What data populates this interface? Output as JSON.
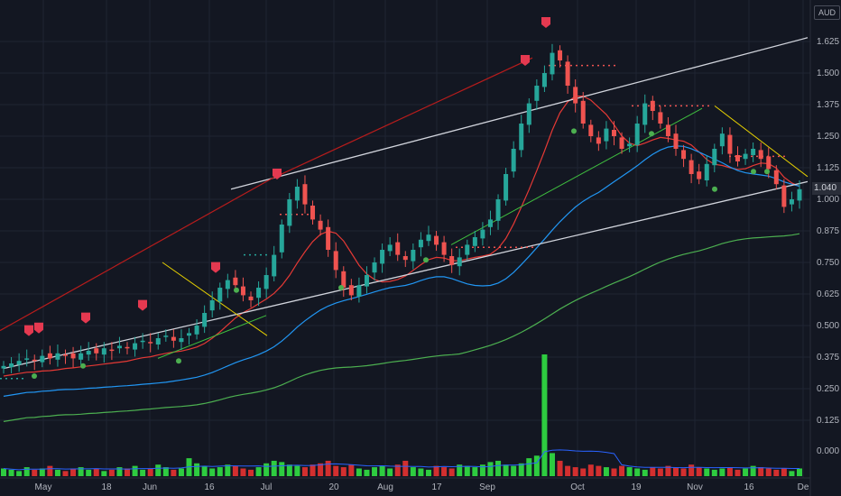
{
  "currency": "AUD",
  "last_price_label": "1.040",
  "colors": {
    "background": "#131722",
    "up": "#26a69a",
    "down": "#ef5350",
    "ma_short": "#e53935",
    "ma_mid": "#2196f3",
    "ma_long": "#4caf50",
    "channel": "#d1d4dc",
    "volume_up": "#2ecc40",
    "volume_down": "#d32f2f",
    "volume_ma": "#2962ff"
  },
  "chart_data": {
    "type": "candlestick",
    "price_axis": {
      "ticks": [
        "1.625",
        "1.500",
        "1.375",
        "1.250",
        "1.125",
        "1.000",
        "0.875",
        "0.750",
        "0.625",
        "0.500",
        "0.375",
        "0.250",
        "0.125"
      ],
      "ylim": [
        0.0,
        1.7
      ]
    },
    "volume_axis": {
      "ticks": [
        "0.000"
      ]
    },
    "x_axis": {
      "ticks": [
        "May",
        "18",
        "Jun",
        "16",
        "Jul",
        "20",
        "Aug",
        "17",
        "Sep",
        "Oct",
        "19",
        "Nov",
        "16",
        "De"
      ]
    },
    "last_price": 1.04,
    "close_series": [
      0.34,
      0.35,
      0.36,
      0.37,
      0.36,
      0.38,
      0.37,
      0.39,
      0.38,
      0.37,
      0.39,
      0.4,
      0.39,
      0.41,
      0.4,
      0.42,
      0.41,
      0.43,
      0.44,
      0.43,
      0.45,
      0.46,
      0.44,
      0.45,
      0.47,
      0.5,
      0.55,
      0.6,
      0.65,
      0.68,
      0.66,
      0.62,
      0.6,
      0.65,
      0.7,
      0.78,
      0.9,
      1.0,
      1.05,
      0.98,
      0.92,
      0.88,
      0.8,
      0.72,
      0.65,
      0.62,
      0.66,
      0.7,
      0.75,
      0.8,
      0.82,
      0.78,
      0.76,
      0.8,
      0.84,
      0.86,
      0.82,
      0.78,
      0.74,
      0.77,
      0.82,
      0.85,
      0.88,
      0.92,
      1.0,
      1.1,
      1.2,
      1.3,
      1.38,
      1.45,
      1.5,
      1.58,
      1.55,
      1.45,
      1.38,
      1.3,
      1.25,
      1.22,
      1.28,
      1.25,
      1.2,
      1.22,
      1.3,
      1.38,
      1.35,
      1.3,
      1.25,
      1.2,
      1.16,
      1.1,
      1.08,
      1.14,
      1.2,
      1.26,
      1.18,
      1.15,
      1.18,
      1.2,
      1.16,
      1.12,
      1.06,
      0.97,
      1.0,
      1.04
    ],
    "volume_series": [
      6,
      5,
      4,
      7,
      5,
      6,
      8,
      5,
      4,
      6,
      7,
      5,
      6,
      4,
      5,
      7,
      6,
      8,
      5,
      6,
      9,
      7,
      5,
      6,
      14,
      10,
      8,
      6,
      7,
      9,
      8,
      6,
      5,
      7,
      10,
      12,
      11,
      9,
      8,
      7,
      9,
      10,
      12,
      8,
      7,
      9,
      6,
      5,
      7,
      8,
      6,
      9,
      12,
      7,
      6,
      5,
      8,
      7,
      6,
      9,
      8,
      7,
      9,
      11,
      12,
      9,
      8,
      10,
      14,
      16,
      95,
      18,
      12,
      8,
      7,
      6,
      9,
      8,
      7,
      6,
      8,
      7,
      6,
      5,
      7,
      6,
      8,
      7,
      6,
      9,
      7,
      6,
      5,
      6,
      7,
      5,
      6,
      8,
      7,
      6,
      5,
      6,
      4,
      6
    ],
    "moving_averages": [
      {
        "period_label": "short",
        "color": "#e53935"
      },
      {
        "period_label": "mid",
        "color": "#2196f3"
      },
      {
        "period_label": "long",
        "color": "#4caf50"
      }
    ]
  }
}
